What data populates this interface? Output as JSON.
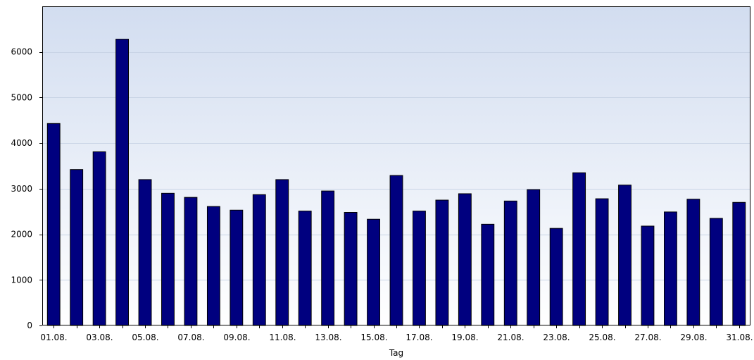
{
  "chart_data": {
    "type": "bar",
    "title": "",
    "xlabel": "Tag",
    "ylabel": "",
    "ylim": [
      0,
      7000
    ],
    "yticks": [
      0,
      1000,
      2000,
      3000,
      4000,
      5000,
      6000
    ],
    "grid": true,
    "legend": "none",
    "categories": [
      "01.08.",
      "02.08.",
      "03.08.",
      "04.08.",
      "05.08.",
      "06.08.",
      "07.08.",
      "08.08.",
      "09.08.",
      "10.08.",
      "11.08.",
      "12.08.",
      "13.08.",
      "14.08.",
      "15.08.",
      "16.08.",
      "17.08.",
      "18.08.",
      "19.08.",
      "20.08.",
      "21.08.",
      "22.08.",
      "23.08.",
      "24.08.",
      "25.08.",
      "26.08.",
      "27.08.",
      "28.08.",
      "29.08.",
      "30.08.",
      "31.08."
    ],
    "x_tick_labels": [
      "01.08.",
      "03.08.",
      "05.08.",
      "07.08.",
      "09.08.",
      "11.08.",
      "13.08.",
      "15.08.",
      "17.08.",
      "19.08.",
      "21.08.",
      "23.08.",
      "25.08.",
      "27.08.",
      "29.08.",
      "31.08."
    ],
    "values": [
      4430,
      3420,
      3810,
      6280,
      3200,
      2900,
      2810,
      2610,
      2530,
      2870,
      3200,
      2510,
      2950,
      2480,
      2330,
      3290,
      2510,
      2750,
      2890,
      2220,
      2730,
      2980,
      2130,
      3350,
      2780,
      3080,
      2180,
      2490,
      2770,
      2350,
      2700
    ],
    "colors": {
      "bar": "#00007f",
      "bar_outline": "#000000",
      "background_top": "#d2ddf0",
      "background_bottom": "#ffffff",
      "grid": "#c9d4e6"
    }
  }
}
